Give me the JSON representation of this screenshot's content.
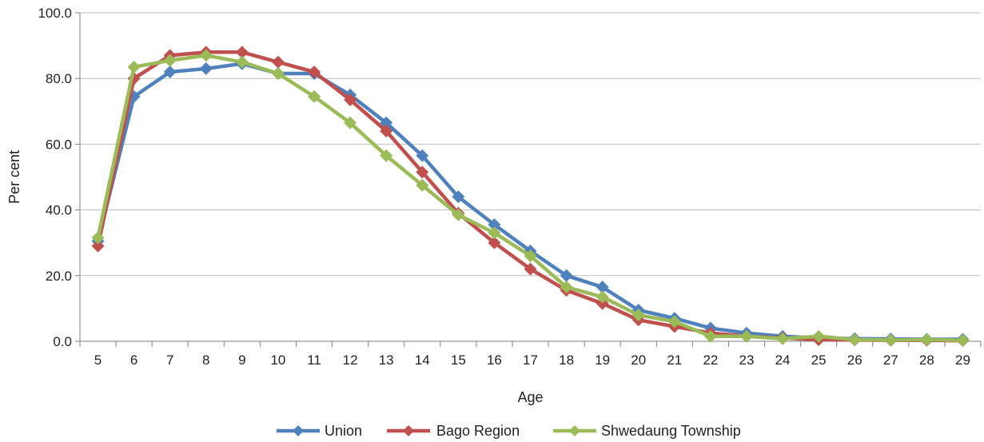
{
  "chart_data": {
    "type": "line",
    "title": "",
    "xlabel": "Age",
    "ylabel": "Per cent",
    "categories": [
      "5",
      "6",
      "7",
      "8",
      "9",
      "10",
      "11",
      "12",
      "13",
      "14",
      "15",
      "16",
      "17",
      "18",
      "19",
      "20",
      "21",
      "22",
      "23",
      "24",
      "25",
      "26",
      "27",
      "28",
      "29"
    ],
    "ylim": [
      0,
      100
    ],
    "ytick_labels": [
      "0.0",
      "20.0",
      "40.0",
      "60.0",
      "80.0",
      "100.0"
    ],
    "grid": "horizontal",
    "legend_position": "bottom",
    "series": [
      {
        "name": "Union",
        "color": "#4F81BD",
        "values": [
          30.5,
          74.5,
          82,
          83,
          84.5,
          81.5,
          81.5,
          75,
          66.5,
          56.5,
          44,
          35.5,
          27.5,
          20,
          16.5,
          9.5,
          7,
          4,
          2.5,
          1.5,
          1,
          0.8,
          0.7,
          0.6,
          0.6
        ]
      },
      {
        "name": "Bago Region",
        "color": "#C0504D",
        "values": [
          29,
          80,
          87,
          88,
          88,
          85,
          82,
          73.5,
          64,
          51.5,
          39,
          30,
          22,
          15.5,
          11.5,
          6.5,
          4.5,
          2.5,
          1.5,
          1,
          0.5,
          0.4,
          0.3,
          0.3,
          0.2
        ]
      },
      {
        "name": "Shwedaung Township",
        "color": "#9BBB59",
        "values": [
          31.5,
          83.5,
          85.5,
          87,
          85,
          81.5,
          74.5,
          66.5,
          56.5,
          47.5,
          38.5,
          33,
          26,
          16.5,
          13.5,
          8,
          6,
          1.5,
          1.5,
          0.8,
          1.5,
          0.5,
          0.4,
          0.5,
          0.3
        ]
      }
    ]
  }
}
